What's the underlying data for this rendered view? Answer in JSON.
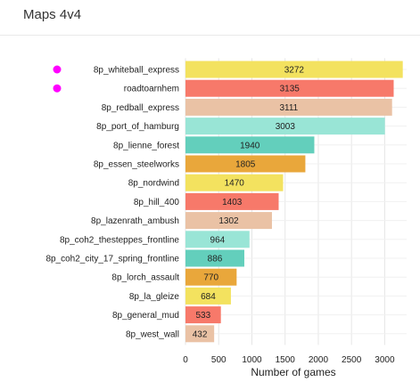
{
  "card": {
    "title": "Maps 4v4"
  },
  "colors": {
    "bar_palette": [
      "#F3E25F",
      "#F7796A",
      "#EAC2A5",
      "#99E5D6",
      "#63CFBC",
      "#E9A73B"
    ],
    "marker": "#FF00FF",
    "gridline": "#e6e6e6"
  },
  "chart_data": {
    "type": "bar",
    "orientation": "horizontal",
    "title": "",
    "xlabel": "Number of games",
    "ylabel": "",
    "xlim": [
      0,
      3330
    ],
    "x_ticks": [
      0,
      500,
      1000,
      1500,
      2000,
      2500,
      3000
    ],
    "grid": true,
    "categories": [
      "8p_whiteball_express",
      "roadtoarnhem",
      "8p_redball_express",
      "8p_port_of_hamburg",
      "8p_lienne_forest",
      "8p_essen_steelworks",
      "8p_nordwind",
      "8p_hill_400",
      "8p_lazenrath_ambush",
      "8p_coh2_thesteppes_frontline",
      "8p_coh2_city_17_spring_frontline",
      "8p_lorch_assault",
      "8p_la_gleize",
      "8p_general_mud",
      "8p_west_wall"
    ],
    "values": [
      3272,
      3135,
      3111,
      3003,
      1940,
      1805,
      1470,
      1403,
      1302,
      964,
      886,
      770,
      684,
      533,
      432
    ],
    "highlighted_categories": [
      "8p_whiteball_express",
      "roadtoarnhem"
    ]
  }
}
